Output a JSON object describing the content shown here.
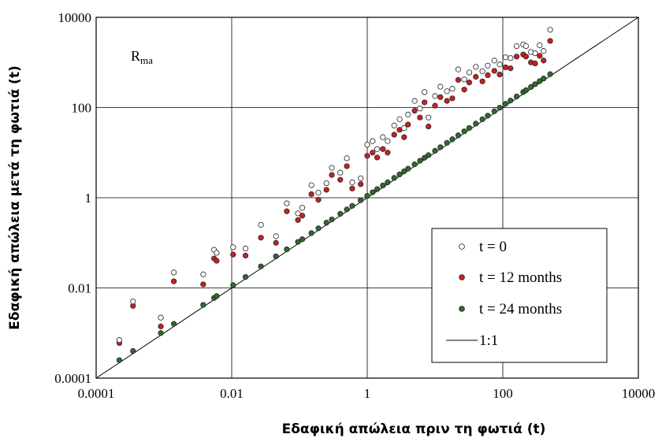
{
  "chart_data": {
    "type": "scatter",
    "xlabel": "Εδαφική απώλεια πριν τη φωτιά (t)",
    "ylabel": "Εδαφική απώλεια μετά τη φωτιά (t)",
    "annotation": "R",
    "annotation_sub": "ma",
    "x_scale": "log",
    "y_scale": "log",
    "xlim": [
      0.0001,
      10000
    ],
    "ylim": [
      0.0001,
      10000
    ],
    "x_ticks": [
      "0.0001",
      "0.01",
      "1",
      "100",
      "10000"
    ],
    "y_ticks": [
      "0.0001",
      "0.01",
      "1",
      "100",
      "10000"
    ],
    "grid": true,
    "legend_position": "bottom-right",
    "x": [
      0.00022,
      0.00035,
      0.0009,
      0.0014,
      0.0038,
      0.0055,
      0.006,
      0.0105,
      0.016,
      0.027,
      0.045,
      0.065,
      0.095,
      0.11,
      0.15,
      0.19,
      0.25,
      0.3,
      0.4,
      0.5,
      0.6,
      0.8,
      1.0,
      1.2,
      1.4,
      1.7,
      2.0,
      2.5,
      3.0,
      3.5,
      4.0,
      5.0,
      6.0,
      7.0,
      8.0,
      10,
      12,
      15,
      18,
      22,
      27,
      32,
      40,
      50,
      60,
      75,
      90,
      110,
      130,
      160,
      200,
      220,
      260,
      300,
      350,
      400,
      500
    ],
    "series": [
      {
        "name": "t = 0",
        "color": "#ffffff",
        "values": [
          0.0007,
          0.005,
          0.0022,
          0.022,
          0.02,
          0.07,
          0.06,
          0.08,
          0.075,
          0.25,
          0.14,
          0.75,
          0.45,
          0.6,
          1.9,
          1.3,
          2.1,
          4.6,
          3.6,
          7.5,
          2.2,
          2.7,
          15,
          18,
          12,
          22,
          18,
          40,
          55,
          35,
          70,
          140,
          95,
          220,
          60,
          180,
          290,
          230,
          260,
          700,
          420,
          600,
          800,
          640,
          850,
          1100,
          900,
          1300,
          1250,
          2300,
          2500,
          2300,
          1700,
          1600,
          2400,
          1800,
          5300
        ]
      },
      {
        "name": "t = 12 months",
        "color": "#cc1f1f",
        "values": [
          0.0006,
          0.004,
          0.0014,
          0.014,
          0.012,
          0.045,
          0.04,
          0.055,
          0.052,
          0.13,
          0.1,
          0.5,
          0.32,
          0.4,
          1.2,
          0.9,
          1.5,
          3.2,
          2.5,
          5.0,
          1.6,
          2.0,
          8.5,
          10,
          7.8,
          12,
          10,
          25,
          32,
          22,
          42,
          85,
          60,
          130,
          38,
          110,
          170,
          140,
          160,
          410,
          250,
          360,
          480,
          380,
          520,
          650,
          540,
          780,
          740,
          1350,
          1500,
          1350,
          1000,
          950,
          1400,
          1100,
          3000
        ]
      },
      {
        "name": "t = 24 months",
        "color": "#2f6b2f",
        "values": [
          0.00025,
          0.0004,
          0.001,
          0.0016,
          0.0042,
          0.006,
          0.0066,
          0.0115,
          0.0175,
          0.03,
          0.05,
          0.072,
          0.105,
          0.12,
          0.165,
          0.21,
          0.28,
          0.33,
          0.44,
          0.55,
          0.66,
          0.88,
          1.1,
          1.32,
          1.55,
          1.87,
          2.2,
          2.75,
          3.3,
          3.85,
          4.4,
          5.5,
          6.6,
          7.7,
          8.8,
          11,
          13.2,
          16.5,
          19.8,
          24.2,
          29.7,
          35.2,
          44,
          55,
          66,
          82.5,
          99,
          121,
          143,
          176,
          220,
          242,
          286,
          330,
          385,
          440,
          550
        ]
      }
    ],
    "reference_line": {
      "name": "1:1",
      "from": [
        0.0001,
        0.0001
      ],
      "to": [
        10000,
        10000
      ]
    }
  }
}
